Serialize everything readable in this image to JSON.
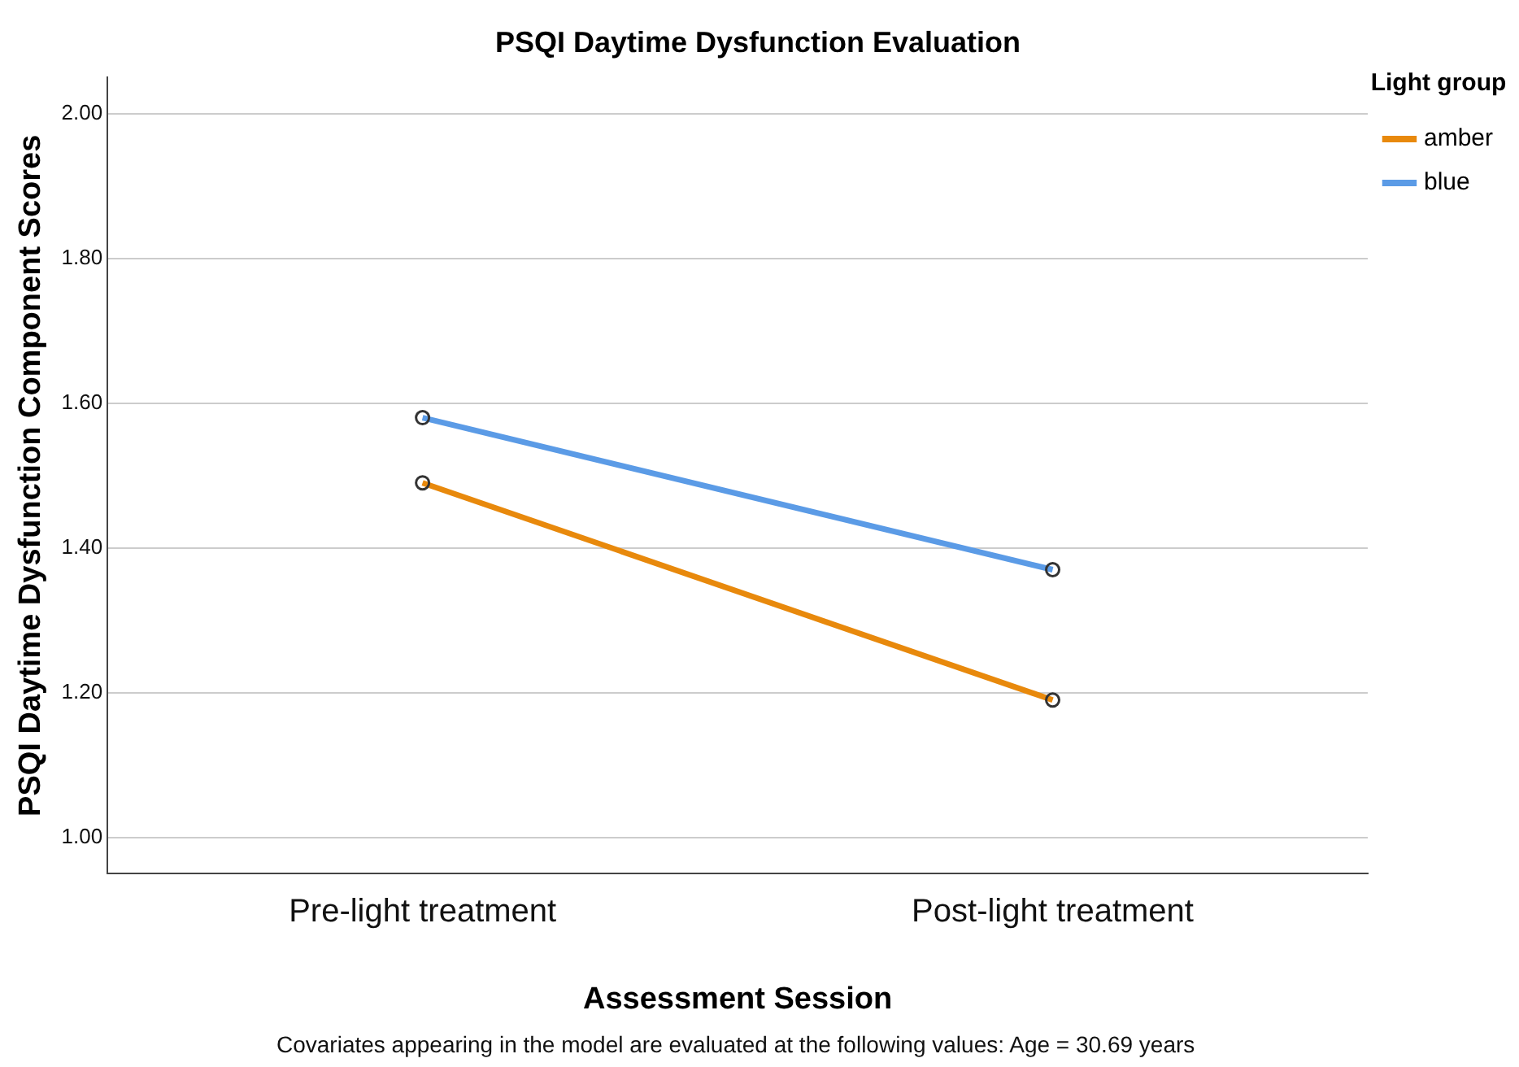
{
  "chart_data": {
    "type": "line",
    "title": "PSQI Daytime Dysfunction Evaluation",
    "xlabel": "Assessment Session",
    "ylabel": "PSQI Daytime Dysfunction Component Scores",
    "legend_title": "Light group",
    "categories": [
      "Pre-light treatment",
      "Post-light treatment"
    ],
    "series": [
      {
        "name": "amber",
        "color": "#e8890c",
        "values": [
          1.49,
          1.19
        ]
      },
      {
        "name": "blue",
        "color": "#5b9be6",
        "values": [
          1.58,
          1.37
        ]
      }
    ],
    "ylim": [
      0.95,
      2.05
    ],
    "yticks": [
      {
        "value": 1,
        "label": "1.00"
      },
      {
        "value": 1.2,
        "label": "1.20"
      },
      {
        "value": 1.4,
        "label": "1.40"
      },
      {
        "value": 1.6,
        "label": "1.60"
      },
      {
        "value": 1.8,
        "label": "1.80"
      },
      {
        "value": 2,
        "label": "2.00"
      }
    ],
    "grid": "y",
    "legend": "top right",
    "marker": "circle",
    "line_style": "solid",
    "annotations": [
      "Covariates appearing in the model are evaluated at the following values: Age = 30.69 years"
    ]
  }
}
